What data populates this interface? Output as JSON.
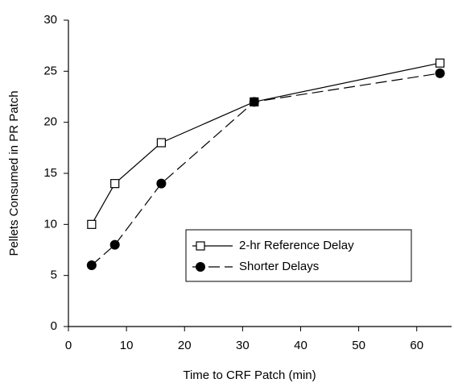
{
  "chart_data": {
    "type": "line",
    "x_label": "Time to CRF Patch (min)",
    "y_label": "Pellets Consumed in PR Patch",
    "x": [
      4,
      8,
      16,
      32,
      64
    ],
    "series": [
      {
        "name": "2-hr Reference Delay",
        "color": "#000000",
        "marker": "square-open",
        "dash": "solid",
        "values": [
          10,
          14,
          18,
          22,
          25.8
        ]
      },
      {
        "name": "Shorter Delays",
        "color": "#000000",
        "marker": "circle-filled",
        "dash": "dashed",
        "values": [
          6,
          8,
          14,
          22,
          24.8
        ]
      }
    ],
    "xlim": [
      0,
      66
    ],
    "xticks": [
      0,
      10,
      20,
      30,
      40,
      50,
      60
    ],
    "ylim": [
      0,
      30
    ],
    "yticks": [
      0,
      5,
      10,
      15,
      20,
      25,
      30
    ],
    "grid": false,
    "legend_position": "center-right"
  }
}
